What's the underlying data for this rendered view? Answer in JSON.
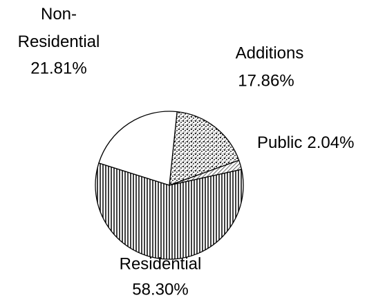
{
  "chart_data": {
    "type": "pie",
    "categories": [
      "Additions",
      "Public",
      "Residential",
      "Non-Residential"
    ],
    "values": [
      17.86,
      2.04,
      58.3,
      21.81
    ],
    "value_labels": [
      "17.86%",
      "2.04%",
      "58.30%",
      "21.81%"
    ],
    "colors": [
      "#222222",
      "#333333",
      "#111111",
      "#ffffff"
    ]
  }
}
